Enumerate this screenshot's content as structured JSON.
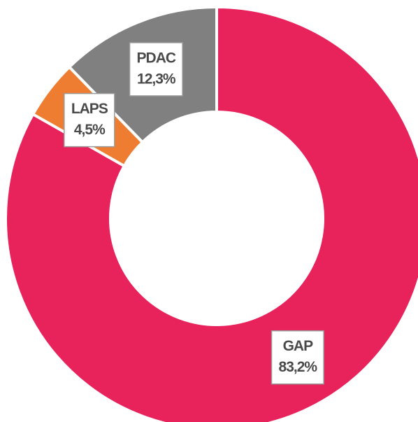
{
  "chart_data": {
    "type": "donut",
    "categories": [
      "GAP",
      "LAPS",
      "PDAC"
    ],
    "values": [
      83.2,
      4.5,
      12.3
    ],
    "value_labels": [
      "83,2%",
      "4,5%",
      "12,3%"
    ],
    "colors": [
      "#e8225b",
      "#ee7d31",
      "#808080"
    ]
  }
}
